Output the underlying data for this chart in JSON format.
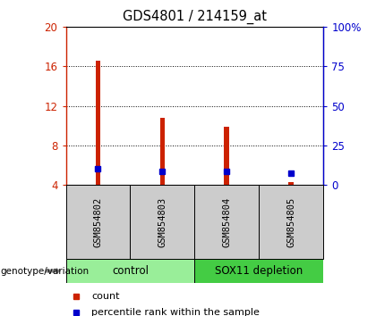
{
  "title": "GDS4801 / 214159_at",
  "samples": [
    "GSM854802",
    "GSM854803",
    "GSM854804",
    "GSM854805"
  ],
  "bar_values": [
    16.6,
    10.8,
    9.9,
    4.3
  ],
  "bar_bottom": 4.0,
  "percentile_values": [
    10.2,
    8.6,
    8.8,
    7.2
  ],
  "ylim": [
    4,
    20
  ],
  "ylim_right": [
    0,
    100
  ],
  "yticks_left": [
    4,
    8,
    12,
    16,
    20
  ],
  "yticks_right": [
    0,
    25,
    50,
    75,
    100
  ],
  "bar_color": "#cc2200",
  "dot_color": "#0000cc",
  "label_area_color": "#cccccc",
  "groups": [
    {
      "label": "control",
      "samples": [
        0,
        1
      ],
      "color": "#99ee99"
    },
    {
      "label": "SOX11 depletion",
      "samples": [
        2,
        3
      ],
      "color": "#44cc44"
    }
  ],
  "legend_count_label": "count",
  "legend_percentile_label": "percentile rank within the sample",
  "genotype_label": "genotype/variation",
  "bar_width": 0.08
}
